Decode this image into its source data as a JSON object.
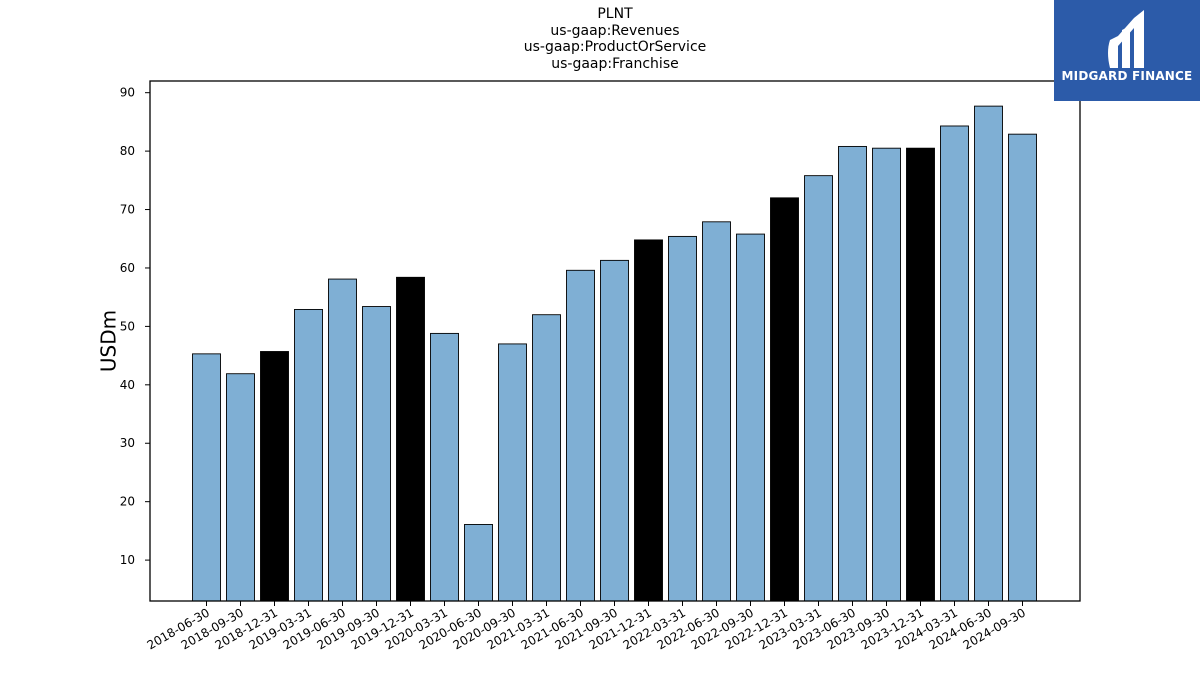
{
  "chart_data": {
    "type": "bar",
    "title_lines": [
      "PLNT",
      "us-gaap:Revenues",
      "us-gaap:ProductOrService",
      "us-gaap:Franchise"
    ],
    "xlabel": "",
    "ylabel": "USDm",
    "ylim": [
      3,
      92
    ],
    "yticks": [
      10,
      20,
      30,
      40,
      50,
      60,
      70,
      80,
      90
    ],
    "grid": false,
    "categories": [
      "2018-06-30",
      "2018-09-30",
      "2018-12-31",
      "2019-03-31",
      "2019-06-30",
      "2019-09-30",
      "2019-12-31",
      "2020-03-31",
      "2020-06-30",
      "2020-09-30",
      "2021-03-31",
      "2021-06-30",
      "2021-09-30",
      "2021-12-31",
      "2022-03-31",
      "2022-06-30",
      "2022-09-30",
      "2022-12-31",
      "2023-03-31",
      "2023-06-30",
      "2023-09-30",
      "2023-12-31",
      "2024-03-31",
      "2024-06-30",
      "2024-09-30"
    ],
    "values": [
      45.3,
      41.9,
      45.7,
      52.9,
      58.1,
      53.4,
      58.4,
      48.8,
      16.1,
      47.0,
      52.0,
      59.6,
      61.3,
      64.8,
      65.4,
      67.9,
      65.8,
      72.0,
      75.8,
      80.8,
      80.5,
      80.5,
      84.3,
      87.7,
      82.9
    ],
    "bar_colors": [
      "#7fafd4",
      "#7fafd4",
      "#000000",
      "#7fafd4",
      "#7fafd4",
      "#7fafd4",
      "#000000",
      "#7fafd4",
      "#7fafd4",
      "#7fafd4",
      "#7fafd4",
      "#7fafd4",
      "#7fafd4",
      "#000000",
      "#7fafd4",
      "#7fafd4",
      "#7fafd4",
      "#000000",
      "#7fafd4",
      "#7fafd4",
      "#7fafd4",
      "#000000",
      "#7fafd4",
      "#7fafd4",
      "#7fafd4"
    ]
  },
  "logo": {
    "text": "MIDGARD FINANCE",
    "background": "#2c5ba9"
  }
}
